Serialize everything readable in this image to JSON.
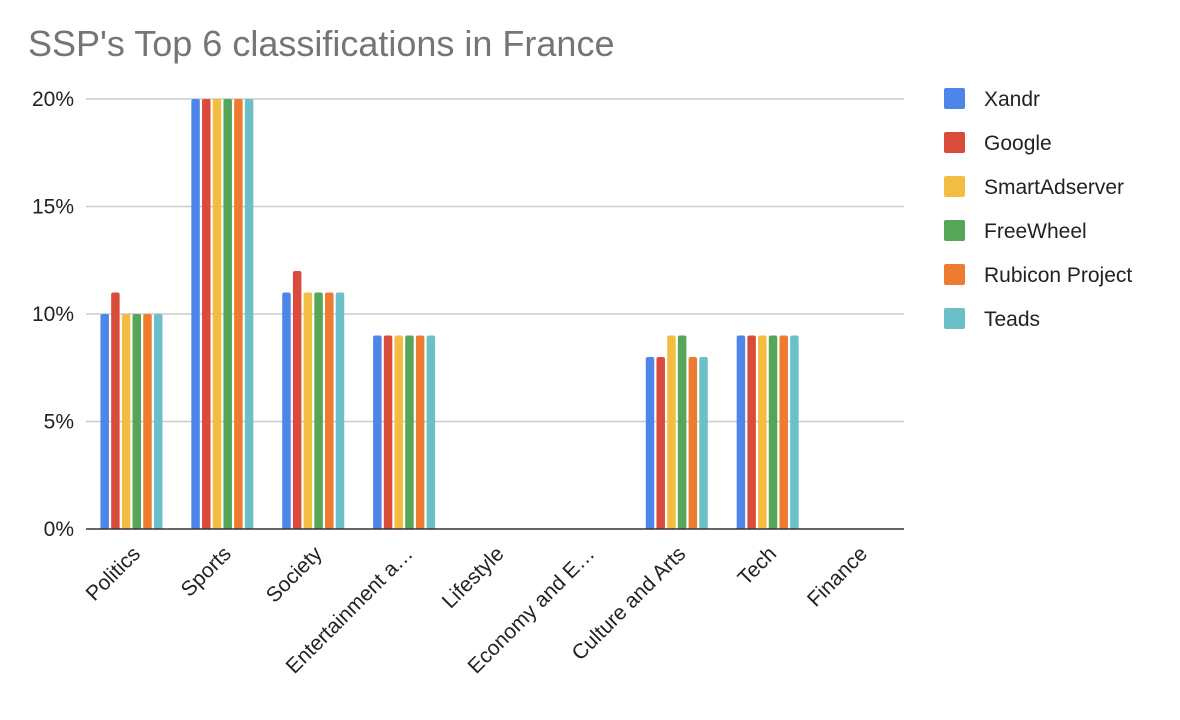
{
  "chart_data": {
    "type": "bar",
    "title": "SSP's Top 6 classifications in France",
    "xlabel": "",
    "ylabel": "",
    "ylim": [
      0,
      20
    ],
    "yticks": [
      0,
      5,
      10,
      15,
      20
    ],
    "ytick_labels": [
      "0%",
      "5%",
      "10%",
      "15%",
      "20%"
    ],
    "grid": true,
    "legend_position": "right",
    "categories": [
      "Politics",
      "Sports",
      "Society",
      "Entertainment a…",
      "Lifestyle",
      "Economy and E…",
      "Culture and Arts",
      "Tech",
      "Finance"
    ],
    "series": [
      {
        "name": "Xandr",
        "color": "#4e85e8",
        "values": [
          10,
          20,
          11,
          9,
          0,
          0,
          8,
          9,
          0
        ]
      },
      {
        "name": "Google",
        "color": "#d94c3b",
        "values": [
          11,
          20,
          12,
          9,
          0,
          0,
          8,
          9,
          0
        ]
      },
      {
        "name": "SmartAdserver",
        "color": "#f3bd42",
        "values": [
          10,
          20,
          11,
          9,
          0,
          0,
          9,
          9,
          0
        ]
      },
      {
        "name": "FreeWheel",
        "color": "#55a658",
        "values": [
          10,
          20,
          11,
          9,
          0,
          0,
          9,
          9,
          0
        ]
      },
      {
        "name": "Rubicon Project",
        "color": "#ee7c30",
        "values": [
          10,
          20,
          11,
          9,
          0,
          0,
          8,
          9,
          0
        ]
      },
      {
        "name": "Teads",
        "color": "#6bbfc7",
        "values": [
          10,
          20,
          11,
          9,
          0,
          0,
          8,
          9,
          0
        ]
      }
    ]
  }
}
